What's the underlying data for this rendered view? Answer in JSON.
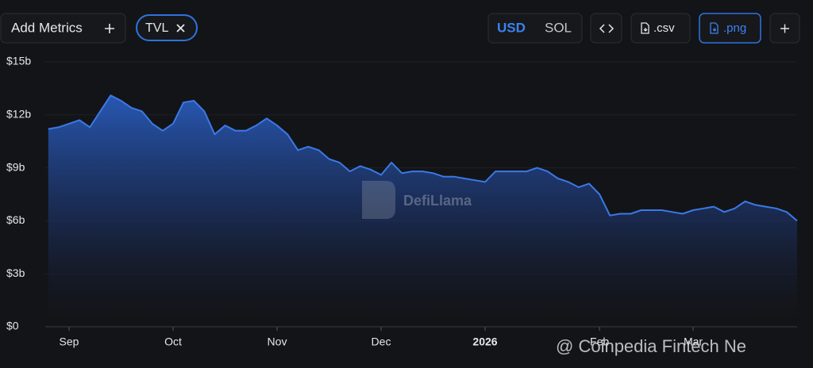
{
  "toolbar": {
    "add_metrics": "Add Metrics",
    "currencies": [
      "USD",
      "SOL"
    ],
    "csv": ".csv",
    "png": ".png"
  },
  "watermarks": {
    "brand": "DefiLlama",
    "credit": "@ Coinpedia Fintech Ne"
  },
  "chart_data": {
    "type": "area",
    "categories": [
      null,
      null,
      "Sep",
      null,
      null,
      null,
      null,
      null,
      null,
      null,
      null,
      null,
      "Oct",
      null,
      null,
      null,
      null,
      null,
      null,
      null,
      null,
      null,
      "Nov",
      null,
      null,
      null,
      null,
      null,
      null,
      null,
      null,
      null,
      "Dec",
      null,
      null,
      null,
      null,
      null,
      null,
      null,
      null,
      null,
      "2026",
      null,
      null,
      null,
      null,
      null,
      null,
      null,
      null,
      null,
      null,
      "Feb",
      null,
      null,
      null,
      null,
      null,
      null,
      null,
      null,
      "Mar",
      null,
      null,
      null,
      null,
      null,
      null,
      null,
      null,
      null,
      null
    ],
    "series": [
      {
        "name": "TVL",
        "color": "#3b78e7",
        "values": [
          11.2,
          11.3,
          11.5,
          11.7,
          11.3,
          12.2,
          13.1,
          12.8,
          12.4,
          12.2,
          11.5,
          11.1,
          11.5,
          12.7,
          12.8,
          12.2,
          10.9,
          11.4,
          11.1,
          11.1,
          11.4,
          11.8,
          11.4,
          10.9,
          10.0,
          10.2,
          10.0,
          9.5,
          9.3,
          8.8,
          9.1,
          8.9,
          8.6,
          9.3,
          8.7,
          8.8,
          8.8,
          8.7,
          8.5,
          8.5,
          8.4,
          8.3,
          8.2,
          8.8,
          8.8,
          8.8,
          8.8,
          9.0,
          8.8,
          8.4,
          8.2,
          7.9,
          8.1,
          7.5,
          6.3,
          6.4,
          6.4,
          6.6,
          6.6,
          6.6,
          6.5,
          6.4,
          6.6,
          6.7,
          6.8,
          6.5,
          6.7,
          7.1,
          6.9,
          6.8,
          6.7,
          6.5,
          6.0
        ]
      }
    ],
    "ylim": [
      0,
      15
    ],
    "yticks": [
      {
        "value": 0,
        "label": "$0"
      },
      {
        "value": 3,
        "label": "$3b"
      },
      {
        "value": 6,
        "label": "$6b"
      },
      {
        "value": 9,
        "label": "$9b"
      },
      {
        "value": 12,
        "label": "$12b"
      },
      {
        "value": 15,
        "label": "$15b"
      }
    ]
  }
}
